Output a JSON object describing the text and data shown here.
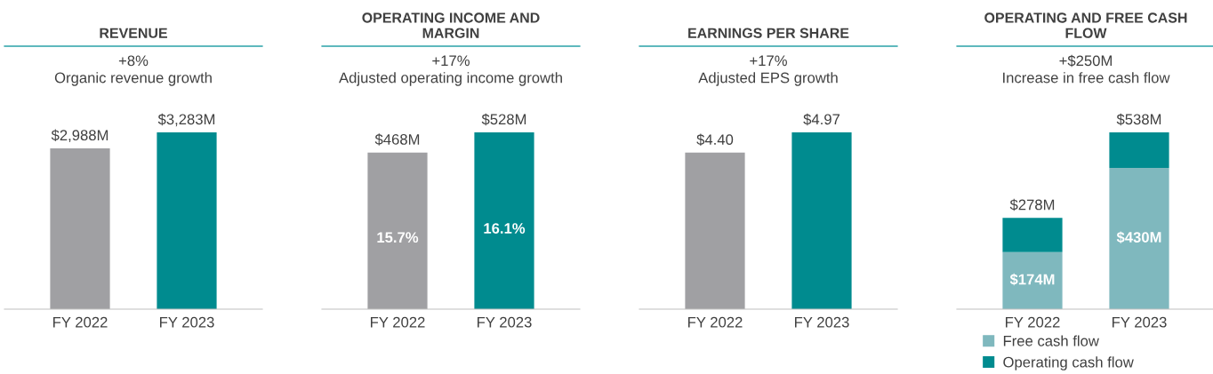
{
  "chart_data": [
    {
      "type": "bar",
      "title": "REVENUE",
      "subtitle": "+8%\nOrganic revenue growth",
      "categories": [
        "FY 2022",
        "FY 2023"
      ],
      "tick_labels": "x",
      "series": [
        {
          "values": [
            2988,
            3283
          ],
          "colors": [
            "#a0a0a3",
            "#008b8f"
          ],
          "value_labels": [
            "$2,988M",
            "$3,283M"
          ]
        }
      ]
    },
    {
      "type": "bar",
      "title": "OPERATING INCOME AND\nMARGIN",
      "subtitle": "+17%\nAdjusted operating income growth",
      "categories": [
        "FY 2022",
        "FY 2023"
      ],
      "tick_labels": "x",
      "series": [
        {
          "values": [
            468,
            528
          ],
          "colors": [
            "#a0a0a3",
            "#008b8f"
          ],
          "value_labels": [
            "$468M",
            "$528M"
          ]
        }
      ],
      "annotations": [
        "15.7%",
        "16.1%"
      ]
    },
    {
      "type": "bar",
      "title": "EARNINGS PER SHARE",
      "subtitle": "+17%\nAdjusted EPS growth",
      "categories": [
        "FY 2022",
        "FY 2023"
      ],
      "tick_labels": "x",
      "series": [
        {
          "values": [
            4.4,
            4.97
          ],
          "colors": [
            "#a0a0a3",
            "#008b8f"
          ],
          "value_labels": [
            "$4.40",
            "$4.97"
          ]
        }
      ]
    },
    {
      "type": "bar",
      "stacked": true,
      "title": "OPERATING AND FREE CASH\nFLOW",
      "subtitle": "+$250M\nIncrease in free cash flow",
      "categories": [
        "FY 2022",
        "FY 2023"
      ],
      "tick_labels": "x",
      "legend": "bottom",
      "series": [
        {
          "name": "Free cash flow",
          "color": "#7fb8be",
          "values": [
            174,
            430
          ],
          "value_labels": [
            "$174M",
            "$430M"
          ]
        },
        {
          "name": "Operating cash flow",
          "color": "#008b8f",
          "values": [
            104,
            108
          ]
        }
      ],
      "totals": [
        "$278M",
        "$538M"
      ]
    }
  ]
}
